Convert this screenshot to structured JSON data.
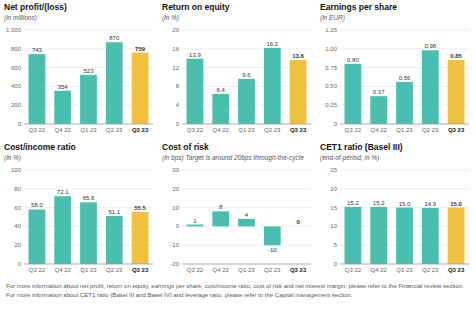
{
  "chart_data": [
    {
      "type": "bar",
      "title": "Net profit/(loss)",
      "subtitle": "(in millions)",
      "categories": [
        "Q3 22",
        "Q4 22",
        "Q1 23",
        "Q2 23",
        "Q3 23"
      ],
      "values": [
        743,
        354,
        523,
        870,
        759
      ],
      "colors": [
        "#4BBFAD",
        "#4BBFAD",
        "#4BBFAD",
        "#4BBFAD",
        "#F0C040"
      ],
      "ylim": [
        0,
        1000
      ],
      "yticks": [
        0,
        200,
        400,
        600,
        800,
        {
          "value": 1000,
          "label": "1,000"
        }
      ],
      "grid": true,
      "data_labels": true
    },
    {
      "type": "bar",
      "title": "Return on equity",
      "subtitle": "(in %)",
      "categories": [
        "Q3 22",
        "Q4 22",
        "Q1 23",
        "Q2 23",
        "Q3 23"
      ],
      "values": [
        13.9,
        6.4,
        9.6,
        16.2,
        13.6
      ],
      "colors": [
        "#4BBFAD",
        "#4BBFAD",
        "#4BBFAD",
        "#4BBFAD",
        "#F0C040"
      ],
      "ylim": [
        0,
        20
      ],
      "yticks": [
        0,
        4,
        8,
        12,
        16,
        20
      ],
      "grid": true,
      "data_labels": true
    },
    {
      "type": "bar",
      "title": "Earnings per share",
      "subtitle": "(in EUR)",
      "categories": [
        "Q3 22",
        "Q4 22",
        "Q1 23",
        "Q2 23",
        "Q3 23"
      ],
      "values": [
        0.8,
        0.37,
        0.56,
        0.98,
        0.85
      ],
      "value_labels": [
        "0.80",
        "0.37",
        "0.56",
        "0.98",
        "0.85"
      ],
      "colors": [
        "#4BBFAD",
        "#4BBFAD",
        "#4BBFAD",
        "#4BBFAD",
        "#F0C040"
      ],
      "ylim": [
        0,
        1.25
      ],
      "yticks": [
        0,
        0.25,
        {
          "value": 0.5,
          "label": "0.50"
        },
        0.75,
        {
          "value": 1,
          "label": "1.00"
        },
        1.25
      ],
      "grid": true,
      "data_labels": true
    },
    {
      "type": "bar",
      "title": "Cost/income ratio",
      "subtitle": "(in %)",
      "categories": [
        "Q3 22",
        "Q4 22",
        "Q1 23",
        "Q2 23",
        "Q3 23"
      ],
      "values": [
        58.0,
        72.1,
        65.6,
        51.1,
        55.5
      ],
      "value_labels": [
        "58.0",
        "72.1",
        "65.6",
        "51.1",
        "55.5"
      ],
      "colors": [
        "#4BBFAD",
        "#4BBFAD",
        "#4BBFAD",
        "#4BBFAD",
        "#F0C040"
      ],
      "ylim": [
        0,
        100
      ],
      "yticks": [
        0,
        20,
        40,
        60,
        80,
        100
      ],
      "grid": true,
      "data_labels": true
    },
    {
      "type": "bar",
      "title": "Cost of risk",
      "subtitle": "(in bps) Target is around 20bps through-the-cycle",
      "categories": [
        "Q3 22",
        "Q4 22",
        "Q1 23",
        "Q2 23",
        "Q3 23"
      ],
      "values": [
        1,
        8,
        4,
        -10,
        0
      ],
      "colors": [
        "#4BBFAD",
        "#4BBFAD",
        "#4BBFAD",
        "#4BBFAD",
        "#F0C040"
      ],
      "ylim": [
        -20,
        30
      ],
      "yticks": [
        -20,
        -10,
        0,
        10,
        20,
        30
      ],
      "grid": true,
      "data_labels": true
    },
    {
      "type": "bar",
      "title": "CET1 ratio (Basel III)",
      "subtitle": "(end-of-period, in %)",
      "categories": [
        "Q3 22",
        "Q4 22",
        "Q1 23",
        "Q2 23",
        "Q3 23"
      ],
      "values": [
        15.2,
        15.2,
        15.0,
        14.9,
        15.0
      ],
      "value_labels": [
        "15.2",
        "15.2",
        "15.0",
        "14.9",
        "15.0"
      ],
      "colors": [
        "#4BBFAD",
        "#4BBFAD",
        "#4BBFAD",
        "#4BBFAD",
        "#F0C040"
      ],
      "ylim": [
        0,
        25
      ],
      "yticks": [
        0,
        5,
        10,
        15,
        20,
        25
      ],
      "grid": true,
      "data_labels": true
    }
  ],
  "footer": [
    "For more information about net profit, return on equity, earnings per share, cost/income ratio, cost of risk and net interest margin, please refer to the Financial review section.",
    "For more information about CET1 ratio (Basel III and Basel IV) and leverage ratio, please refer to the Capital management section."
  ]
}
